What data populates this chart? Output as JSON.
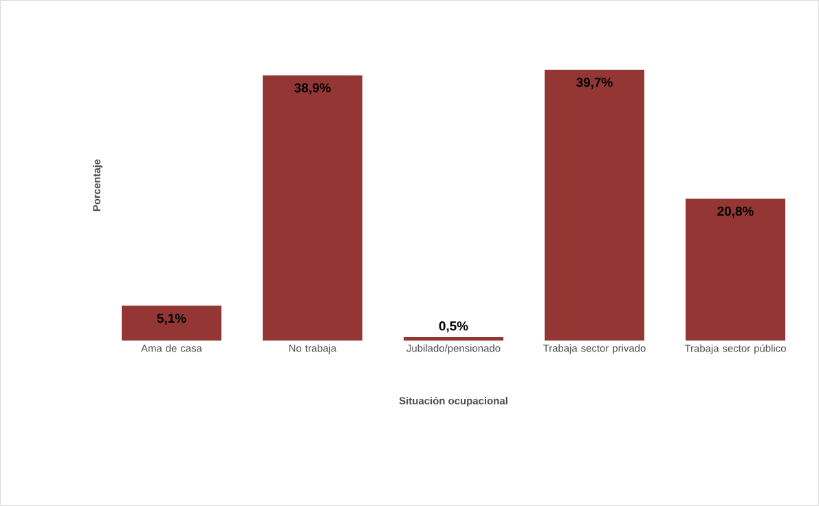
{
  "chart_data": {
    "type": "bar",
    "xlabel": "Situación ocupacional",
    "ylabel": "Porcentaje",
    "categories": [
      "Ama de casa",
      "No trabaja",
      "Jubilado/pensionado",
      "Trabaja sector privado",
      "Trabaja sector público"
    ],
    "values": [
      5.1,
      38.9,
      0.5,
      39.7,
      20.8
    ],
    "value_labels": [
      "5,1%",
      "38,9%",
      "0,5%",
      "39,7%",
      "20,8%"
    ],
    "color": "#943634"
  }
}
